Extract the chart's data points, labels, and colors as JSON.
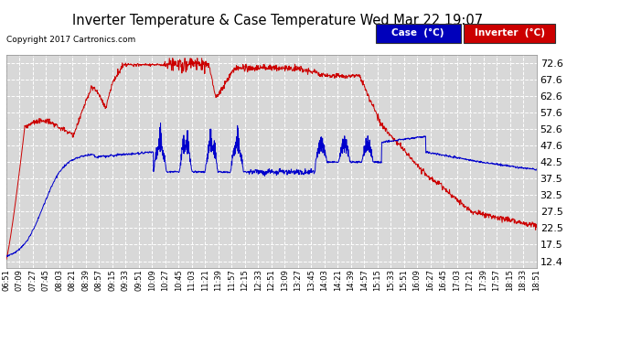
{
  "title": "Inverter Temperature & Case Temperature Wed Mar 22 19:07",
  "copyright": "Copyright 2017 Cartronics.com",
  "legend_case_label": "Case  (°C)",
  "legend_inverter_label": "Inverter  (°C)",
  "case_color": "#0000cc",
  "inverter_color": "#cc0000",
  "legend_case_bg": "#0000bb",
  "legend_inverter_bg": "#cc0000",
  "yticks": [
    12.4,
    17.5,
    22.5,
    27.5,
    32.5,
    37.5,
    42.5,
    47.6,
    52.6,
    57.6,
    62.6,
    67.6,
    72.6
  ],
  "ylim": [
    10.5,
    75.0
  ],
  "bg_color": "#ffffff",
  "plot_bg_color": "#d8d8d8",
  "grid_color": "#ffffff",
  "grid_style": "--",
  "x_tick_labels": [
    "06:51",
    "07:09",
    "07:27",
    "07:45",
    "08:03",
    "08:21",
    "08:39",
    "08:57",
    "09:15",
    "09:33",
    "09:51",
    "10:09",
    "10:27",
    "10:45",
    "11:03",
    "11:21",
    "11:39",
    "11:57",
    "12:15",
    "12:33",
    "12:51",
    "13:09",
    "13:27",
    "13:45",
    "14:03",
    "14:21",
    "14:39",
    "14:57",
    "15:15",
    "15:33",
    "15:51",
    "16:09",
    "16:27",
    "16:45",
    "17:03",
    "17:21",
    "17:39",
    "17:57",
    "18:15",
    "18:33",
    "18:51"
  ]
}
